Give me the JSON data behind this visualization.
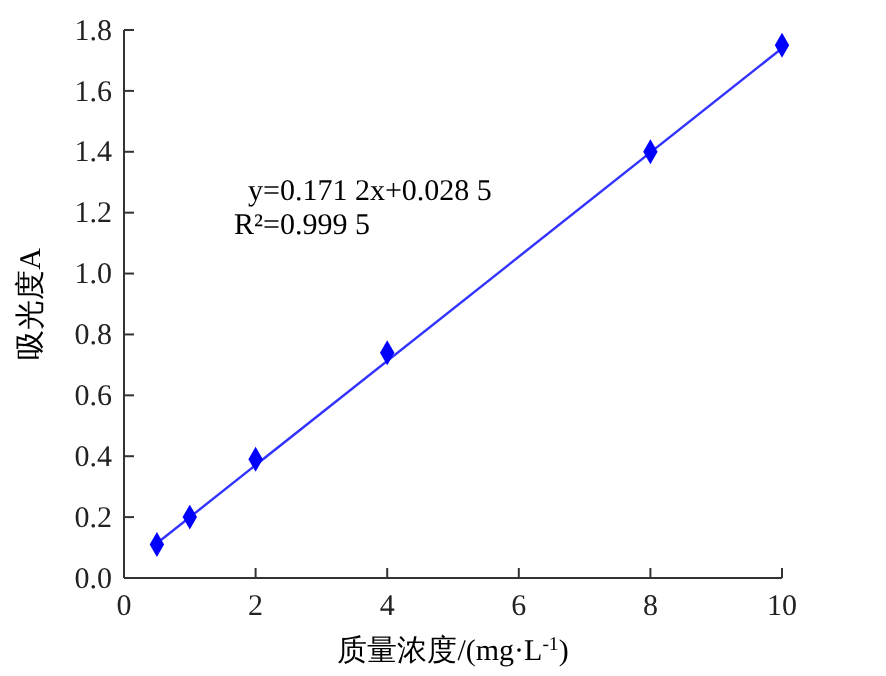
{
  "chart_data": {
    "type": "scatter",
    "xlabel": "质量浓度/(mg·L$^{-1}$)",
    "ylabel": "吸光度A",
    "xlim": [
      0,
      10
    ],
    "xticks": [
      0,
      2,
      4,
      6,
      8,
      10
    ],
    "ylim": [
      0,
      1.8
    ],
    "yticks": [
      {
        "value": 0,
        "label": "0.0"
      },
      0.2,
      0.4,
      0.6,
      0.8,
      {
        "value": 1,
        "label": "1.0"
      },
      1.2,
      1.4,
      1.6,
      1.8
    ],
    "grid": false,
    "annotations": [
      "y=0.171 2x+0.028 5",
      "R²=0.999 5"
    ],
    "series": [
      {
        "marker": "diamond",
        "color": "#0000ff",
        "x": [
          0.5,
          1,
          2,
          4,
          8,
          10
        ],
        "values": [
          0.11,
          0.2,
          0.39,
          0.74,
          1.4,
          1.75
        ]
      },
      {
        "type": "line",
        "color": "#3333ff",
        "x": [
          0.5,
          10
        ],
        "values": [
          0.114,
          1.74
        ]
      }
    ]
  }
}
